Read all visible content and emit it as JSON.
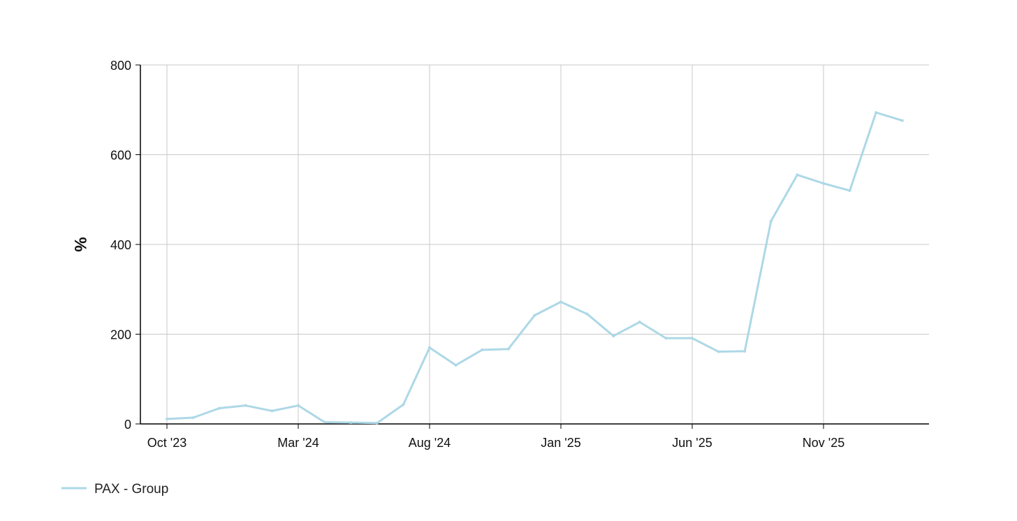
{
  "chart_data": {
    "type": "line",
    "title": "",
    "xlabel": "",
    "ylabel": "%",
    "ylim": [
      0,
      800
    ],
    "yticks": [
      "0",
      "200",
      "400",
      "600",
      "800"
    ],
    "xticks": [
      {
        "label": "Oct '23",
        "date": "2023-10"
      },
      {
        "label": "Mar '24",
        "date": "2024-03"
      },
      {
        "label": "Aug '24",
        "date": "2024-08"
      },
      {
        "label": "Jan '25",
        "date": "2025-01"
      },
      {
        "label": "Jun '25",
        "date": "2025-06"
      },
      {
        "label": "Nov '25",
        "date": "2025-11"
      }
    ],
    "x": [
      "2023-10",
      "2023-11",
      "2023-12",
      "2024-01",
      "2024-02",
      "2024-03",
      "2024-04",
      "2024-05",
      "2024-06",
      "2024-07",
      "2024-08",
      "2024-09",
      "2024-10",
      "2024-11",
      "2024-12",
      "2025-01",
      "2025-02",
      "2025-03",
      "2025-04",
      "2025-05",
      "2025-06",
      "2025-07",
      "2025-08",
      "2025-09",
      "2025-10",
      "2025-11",
      "2025-12",
      "2026-01",
      "2026-02"
    ],
    "grid": true,
    "legend_position": "bottom-left",
    "series": [
      {
        "name": "PAX - Group",
        "color": "#add8e6",
        "values": [
          11,
          14,
          35,
          41,
          29,
          41,
          4,
          3,
          2,
          43,
          170,
          131,
          165,
          167,
          242,
          272,
          245,
          196,
          227,
          191,
          191,
          161,
          162,
          452,
          555,
          536,
          520,
          694,
          676
        ]
      }
    ]
  }
}
